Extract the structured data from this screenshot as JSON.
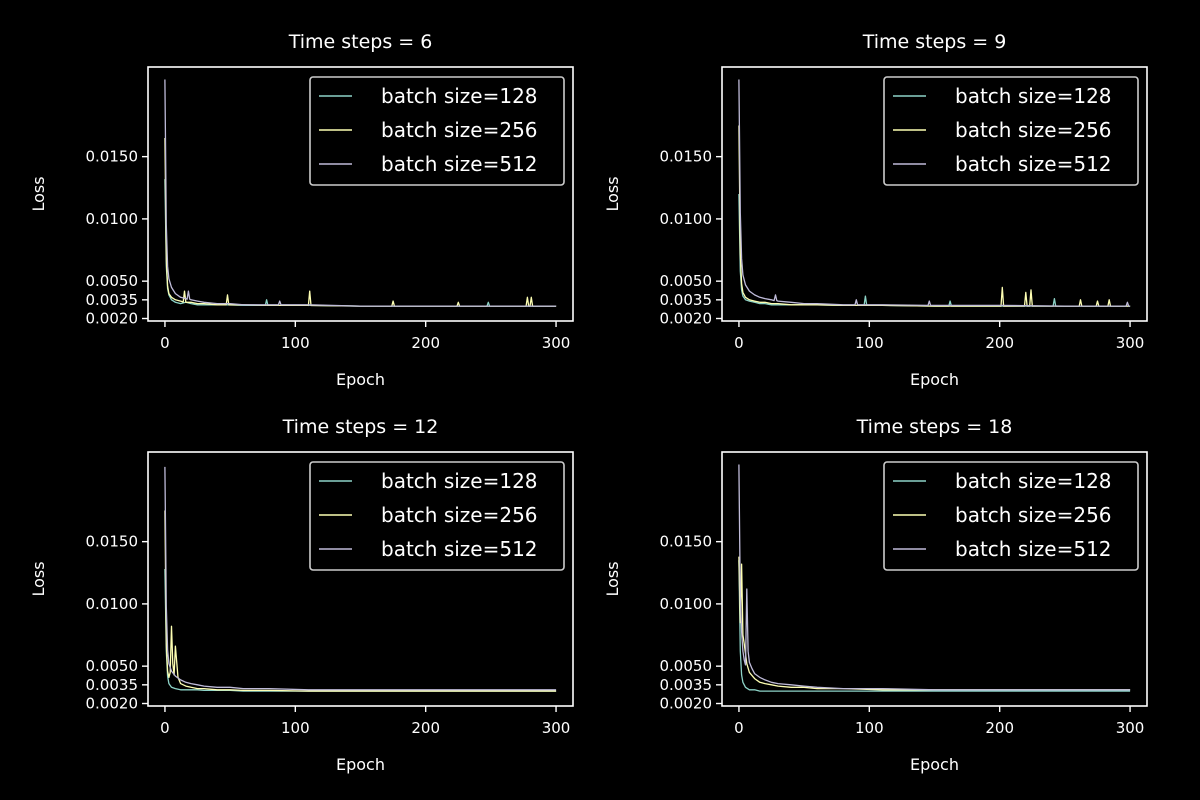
{
  "figure": {
    "background": "#000000",
    "foreground": "#ffffff",
    "series_colors": [
      "#8dd3c7",
      "#feffb3",
      "#bfbbd9"
    ]
  },
  "chart_data": [
    {
      "type": "line",
      "title": "Time steps = 6",
      "xlabel": "Epoch",
      "ylabel": "Loss",
      "xlim": [
        -13,
        313
      ],
      "ylim": [
        0.0018,
        0.0222
      ],
      "xticks": [
        0,
        100,
        200,
        300
      ],
      "xticklabels": [
        "0",
        "100",
        "200",
        "300"
      ],
      "yticks": [
        0.002,
        0.0035,
        0.005,
        0.01,
        0.015
      ],
      "yticklabels": [
        "0.0020",
        "0.0035",
        "0.0050",
        "0.0100",
        "0.0150"
      ],
      "legend": "upper-right",
      "grid": false,
      "series": [
        {
          "name": "batch size=128",
          "color": "#8dd3c7",
          "x": [
            0,
            1,
            2,
            3,
            5,
            8,
            12,
            16,
            20,
            25,
            30,
            40,
            48,
            60,
            80,
            110,
            150,
            200,
            250,
            300
          ],
          "y": [
            0.0132,
            0.0062,
            0.0044,
            0.0039,
            0.0035,
            0.0033,
            0.0032,
            0.0033,
            0.0032,
            0.0031,
            0.0031,
            0.0031,
            0.0031,
            0.00305,
            0.00305,
            0.00305,
            0.003,
            0.003,
            0.003,
            0.003
          ],
          "spikes": [
            [
              78,
              0.0035
            ],
            [
              248,
              0.0033
            ]
          ]
        },
        {
          "name": "batch size=256",
          "color": "#feffb3",
          "x": [
            0,
            1,
            2,
            3,
            5,
            8,
            12,
            16,
            20,
            25,
            30,
            40,
            50,
            60,
            80,
            110,
            150,
            200,
            250,
            300
          ],
          "y": [
            0.0165,
            0.0068,
            0.0046,
            0.004,
            0.0037,
            0.0035,
            0.0034,
            0.0033,
            0.0033,
            0.0032,
            0.0032,
            0.0031,
            0.0031,
            0.0031,
            0.00305,
            0.00305,
            0.003,
            0.003,
            0.003,
            0.003
          ],
          "spikes": [
            [
              15,
              0.0042
            ],
            [
              48,
              0.0039
            ],
            [
              111,
              0.0042
            ],
            [
              175,
              0.0034
            ],
            [
              225,
              0.0033
            ],
            [
              278,
              0.0037
            ],
            [
              281,
              0.0037
            ]
          ]
        },
        {
          "name": "batch size=512",
          "color": "#bfbbd9",
          "x": [
            0,
            1,
            2,
            3,
            5,
            8,
            12,
            16,
            20,
            25,
            30,
            40,
            50,
            60,
            80,
            110,
            150,
            200,
            250,
            300
          ],
          "y": [
            0.0212,
            0.0095,
            0.0062,
            0.0052,
            0.0045,
            0.004,
            0.0037,
            0.0036,
            0.0035,
            0.0034,
            0.0033,
            0.0032,
            0.0032,
            0.0031,
            0.0031,
            0.0031,
            0.003,
            0.003,
            0.003,
            0.003
          ],
          "spikes": [
            [
              18,
              0.0042
            ],
            [
              88,
              0.0034
            ]
          ]
        }
      ]
    },
    {
      "type": "line",
      "title": "Time steps = 9",
      "xlabel": "Epoch",
      "ylabel": "Loss",
      "xlim": [
        -13,
        313
      ],
      "ylim": [
        0.0018,
        0.0222
      ],
      "xticks": [
        0,
        100,
        200,
        300
      ],
      "xticklabels": [
        "0",
        "100",
        "200",
        "300"
      ],
      "yticks": [
        0.002,
        0.0035,
        0.005,
        0.01,
        0.015
      ],
      "yticklabels": [
        "0.0020",
        "0.0035",
        "0.0050",
        "0.0100",
        "0.0150"
      ],
      "legend": "upper-right",
      "grid": false,
      "series": [
        {
          "name": "batch size=128",
          "color": "#8dd3c7",
          "x": [
            0,
            1,
            2,
            3,
            5,
            8,
            12,
            16,
            20,
            25,
            30,
            40,
            50,
            60,
            80,
            110,
            150,
            200,
            250,
            300
          ],
          "y": [
            0.012,
            0.0058,
            0.0043,
            0.0038,
            0.0035,
            0.0034,
            0.0033,
            0.0032,
            0.0032,
            0.0031,
            0.0031,
            0.0031,
            0.0031,
            0.0031,
            0.00305,
            0.00305,
            0.003,
            0.003,
            0.003,
            0.003
          ],
          "spikes": [
            [
              97,
              0.0038
            ],
            [
              162,
              0.0034
            ],
            [
              242,
              0.0036
            ]
          ]
        },
        {
          "name": "batch size=256",
          "color": "#feffb3",
          "x": [
            0,
            1,
            2,
            3,
            5,
            8,
            12,
            16,
            20,
            25,
            30,
            40,
            50,
            60,
            80,
            110,
            150,
            200,
            250,
            300
          ],
          "y": [
            0.0175,
            0.0072,
            0.0048,
            0.0041,
            0.0037,
            0.0035,
            0.0034,
            0.0033,
            0.0033,
            0.0032,
            0.0032,
            0.0031,
            0.0031,
            0.0031,
            0.00305,
            0.00305,
            0.003,
            0.003,
            0.003,
            0.003
          ],
          "spikes": [
            [
              202,
              0.0045
            ],
            [
              220,
              0.0041
            ],
            [
              224,
              0.0043
            ],
            [
              262,
              0.0035
            ],
            [
              275,
              0.0034
            ],
            [
              284,
              0.0035
            ]
          ]
        },
        {
          "name": "batch size=512",
          "color": "#bfbbd9",
          "x": [
            0,
            1,
            2,
            3,
            5,
            8,
            12,
            16,
            20,
            25,
            30,
            40,
            50,
            60,
            80,
            110,
            150,
            200,
            250,
            300
          ],
          "y": [
            0.0212,
            0.0105,
            0.0068,
            0.0055,
            0.0047,
            0.0042,
            0.0039,
            0.0037,
            0.0036,
            0.0035,
            0.0034,
            0.0033,
            0.0032,
            0.0032,
            0.0031,
            0.0031,
            0.00305,
            0.00305,
            0.003,
            0.003
          ],
          "spikes": [
            [
              28,
              0.0039
            ],
            [
              90,
              0.0035
            ],
            [
              146,
              0.0034
            ],
            [
              298,
              0.0033
            ]
          ]
        }
      ]
    },
    {
      "type": "line",
      "title": "Time steps = 12",
      "xlabel": "Epoch",
      "ylabel": "Loss",
      "xlim": [
        -13,
        313
      ],
      "ylim": [
        0.0018,
        0.0222
      ],
      "xticks": [
        0,
        100,
        200,
        300
      ],
      "xticklabels": [
        "0",
        "100",
        "200",
        "300"
      ],
      "yticks": [
        0.002,
        0.0035,
        0.005,
        0.01,
        0.015
      ],
      "yticklabels": [
        "0.0020",
        "0.0035",
        "0.0050",
        "0.0100",
        "0.0150"
      ],
      "legend": "upper-right",
      "grid": false,
      "series": [
        {
          "name": "batch size=128",
          "color": "#8dd3c7",
          "x": [
            0,
            1,
            2,
            3,
            5,
            8,
            12,
            16,
            20,
            25,
            30,
            40,
            50,
            60,
            80,
            110,
            150,
            200,
            250,
            300
          ],
          "y": [
            0.0128,
            0.0062,
            0.0042,
            0.0036,
            0.0033,
            0.0032,
            0.0031,
            0.0031,
            0.0031,
            0.0031,
            0.00305,
            0.00305,
            0.00305,
            0.003,
            0.003,
            0.003,
            0.003,
            0.003,
            0.003,
            0.003
          ],
          "spikes": []
        },
        {
          "name": "batch size=256",
          "color": "#feffb3",
          "x": [
            0,
            1,
            2,
            3,
            4,
            5,
            6,
            7,
            8,
            10,
            12,
            16,
            20,
            25,
            30,
            40,
            50,
            60,
            80,
            110,
            150,
            200,
            250,
            300
          ],
          "y": [
            0.0175,
            0.0068,
            0.0046,
            0.0041,
            0.0045,
            0.0082,
            0.0052,
            0.0043,
            0.0066,
            0.0041,
            0.0036,
            0.0034,
            0.0033,
            0.0032,
            0.0032,
            0.0031,
            0.0031,
            0.00305,
            0.00305,
            0.003,
            0.003,
            0.003,
            0.003,
            0.003
          ],
          "spikes": []
        },
        {
          "name": "batch size=512",
          "color": "#bfbbd9",
          "x": [
            0,
            1,
            2,
            3,
            5,
            8,
            12,
            16,
            20,
            25,
            30,
            40,
            50,
            60,
            80,
            110,
            150,
            200,
            250,
            300
          ],
          "y": [
            0.021,
            0.0098,
            0.0063,
            0.0052,
            0.0046,
            0.0042,
            0.0039,
            0.0037,
            0.0036,
            0.0035,
            0.0034,
            0.0033,
            0.0033,
            0.0032,
            0.0032,
            0.0031,
            0.0031,
            0.0031,
            0.0031,
            0.0031
          ],
          "spikes": []
        }
      ]
    },
    {
      "type": "line",
      "title": "Time steps = 18",
      "xlabel": "Epoch",
      "ylabel": "Loss",
      "xlim": [
        -13,
        313
      ],
      "ylim": [
        0.0018,
        0.0222
      ],
      "xticks": [
        0,
        100,
        200,
        300
      ],
      "xticklabels": [
        "0",
        "100",
        "200",
        "300"
      ],
      "yticks": [
        0.002,
        0.0035,
        0.005,
        0.01,
        0.015
      ],
      "yticklabels": [
        "0.0020",
        "0.0035",
        "0.0050",
        "0.0100",
        "0.0150"
      ],
      "legend": "upper-right",
      "grid": false,
      "series": [
        {
          "name": "batch size=128",
          "color": "#8dd3c7",
          "x": [
            0,
            1,
            2,
            3,
            5,
            8,
            12,
            16,
            20,
            25,
            30,
            40,
            50,
            60,
            80,
            110,
            150,
            200,
            250,
            300
          ],
          "y": [
            0.0135,
            0.0062,
            0.0043,
            0.0037,
            0.0033,
            0.0031,
            0.0031,
            0.003,
            0.003,
            0.003,
            0.003,
            0.003,
            0.003,
            0.003,
            0.003,
            0.003,
            0.003,
            0.003,
            0.003,
            0.003
          ],
          "spikes": []
        },
        {
          "name": "batch size=256",
          "color": "#feffb3",
          "x": [
            0,
            1,
            2,
            3,
            4,
            5,
            6,
            8,
            12,
            16,
            20,
            25,
            30,
            40,
            50,
            60,
            80,
            110,
            150,
            200,
            250,
            300
          ],
          "y": [
            0.0138,
            0.0085,
            0.0132,
            0.0075,
            0.0068,
            0.006,
            0.0052,
            0.0045,
            0.004,
            0.0037,
            0.0036,
            0.0035,
            0.0034,
            0.0033,
            0.0033,
            0.0032,
            0.0032,
            0.0031,
            0.0031,
            0.0031,
            0.0031,
            0.0031
          ],
          "spikes": []
        },
        {
          "name": "batch size=512",
          "color": "#bfbbd9",
          "x": [
            0,
            1,
            2,
            3,
            4,
            5,
            6,
            7,
            8,
            10,
            12,
            16,
            20,
            25,
            30,
            40,
            50,
            60,
            80,
            110,
            150,
            200,
            250,
            300
          ],
          "y": [
            0.0212,
            0.0105,
            0.0078,
            0.0062,
            0.0055,
            0.0051,
            0.0112,
            0.0062,
            0.0053,
            0.0048,
            0.0044,
            0.0041,
            0.0039,
            0.0037,
            0.0036,
            0.0035,
            0.0034,
            0.0033,
            0.0032,
            0.0032,
            0.0031,
            0.0031,
            0.0031,
            0.0031
          ],
          "spikes": []
        }
      ]
    }
  ]
}
